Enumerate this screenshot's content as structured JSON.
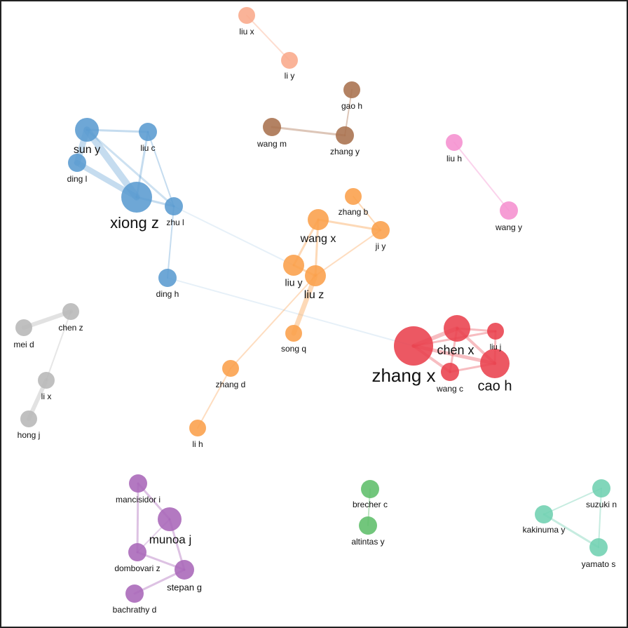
{
  "nodes": [
    {
      "label": "liu x"
    },
    {
      "label": "li y"
    },
    {
      "label": "gao h"
    },
    {
      "label": "wang m"
    },
    {
      "label": "zhang y"
    },
    {
      "label": "liu h"
    },
    {
      "label": "wang y"
    },
    {
      "label": "sun y"
    },
    {
      "label": "liu c"
    },
    {
      "label": "ding l"
    },
    {
      "label": "xiong z"
    },
    {
      "label": "zhu l"
    },
    {
      "label": "ding h"
    },
    {
      "label": "zhang b"
    },
    {
      "label": "wang x"
    },
    {
      "label": "ji y"
    },
    {
      "label": "liu y"
    },
    {
      "label": "liu z"
    },
    {
      "label": "song q"
    },
    {
      "label": "zhang d"
    },
    {
      "label": "li h"
    },
    {
      "label": "zhang x"
    },
    {
      "label": "chen x"
    },
    {
      "label": "liu j"
    },
    {
      "label": "wang c"
    },
    {
      "label": "cao h"
    },
    {
      "label": "chen z"
    },
    {
      "label": "mei d"
    },
    {
      "label": "li x"
    },
    {
      "label": "hong j"
    },
    {
      "label": "mancisidor i"
    },
    {
      "label": "munoa j"
    },
    {
      "label": "dombovari z"
    },
    {
      "label": "stepan g"
    },
    {
      "label": "bachrathy d"
    },
    {
      "label": "brecher c"
    },
    {
      "label": "altintas y"
    },
    {
      "label": "suzuki n"
    },
    {
      "label": "kakinuma y"
    },
    {
      "label": "yamato s"
    }
  ]
}
